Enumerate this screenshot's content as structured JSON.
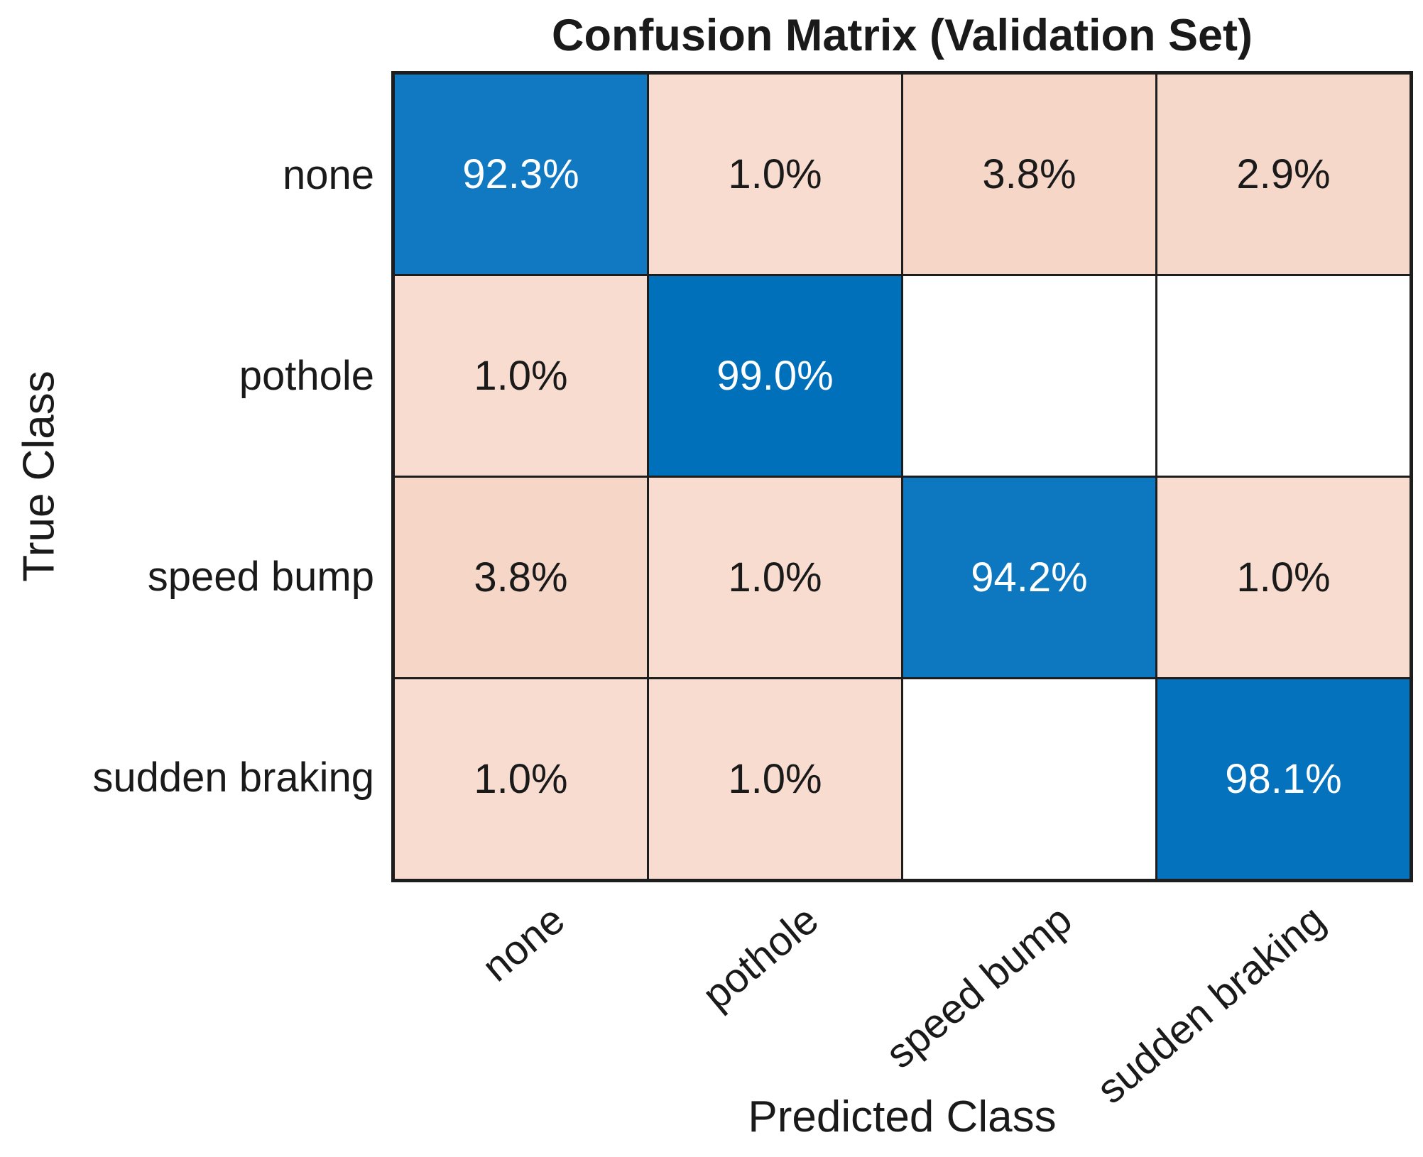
{
  "chart_data": {
    "type": "heatmap",
    "subtype": "confusion-matrix",
    "title": "Confusion Matrix (Validation Set)",
    "xlabel": "Predicted Class",
    "ylabel": "True Class",
    "classes": [
      "none",
      "pothole",
      "speed bump",
      "sudden braking"
    ],
    "matrix_percent": [
      [
        92.3,
        1.0,
        3.8,
        2.9
      ],
      [
        1.0,
        99.0,
        0,
        0
      ],
      [
        3.8,
        1.0,
        94.2,
        1.0
      ],
      [
        1.0,
        1.0,
        0,
        98.1
      ]
    ],
    "cell_labels": [
      [
        "92.3%",
        "1.0%",
        "3.8%",
        "2.9%"
      ],
      [
        "1.0%",
        "99.0%",
        "",
        ""
      ],
      [
        "3.8%",
        "1.0%",
        "94.2%",
        "1.0%"
      ],
      [
        "1.0%",
        "1.0%",
        "",
        "98.1%"
      ]
    ],
    "cell_colors": [
      [
        "#1179c1",
        "#f7dccf",
        "#f5d6c7",
        "#f6d8ca"
      ],
      [
        "#f7dccf",
        "#0070bb",
        "#ffffff",
        "#ffffff"
      ],
      [
        "#f5d6c7",
        "#f7dccf",
        "#0d77bf",
        "#f7dccf"
      ],
      [
        "#f7dccf",
        "#f7dccf",
        "#ffffff",
        "#0472bd"
      ]
    ],
    "colors": {
      "diagonal_blue": "#0f78c0",
      "off_diagonal_pink": "#f6d9cb",
      "empty_cell": "#ffffff",
      "grid_line": "#1d1d1d",
      "diagonal_value_text": "#ffffff",
      "off_diagonal_value_text": "#1a1a1a",
      "label_text": "#1a1a1a"
    },
    "layout": {
      "legend": "none",
      "grid": "cell borders on",
      "x_tick_rotation_deg": -40,
      "value_range": [
        0,
        100
      ]
    }
  }
}
